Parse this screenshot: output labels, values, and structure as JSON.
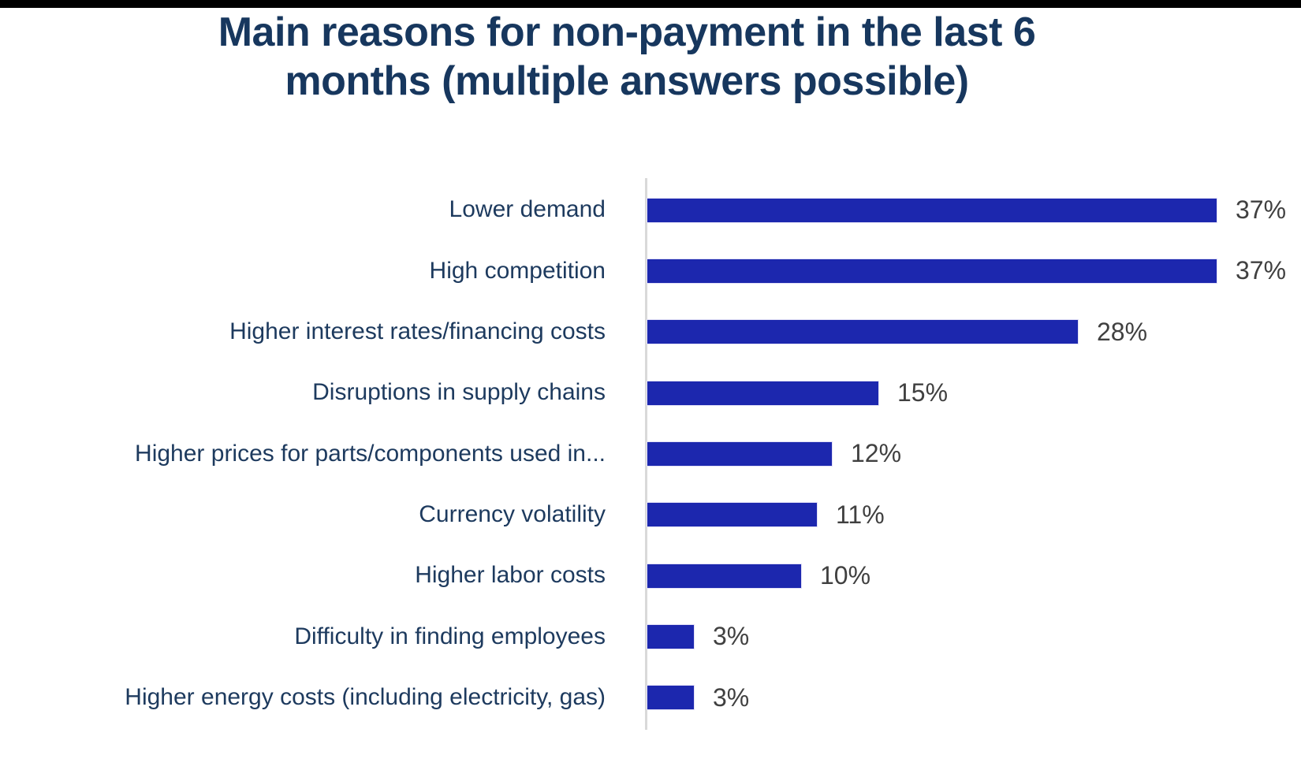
{
  "colors": {
    "top_bar": "#000000",
    "title": "#17375e",
    "category_label": "#1d3a5e",
    "value_label": "#404040",
    "bar": "#1c27ae",
    "axis_line": "#d9d9d9",
    "background": "#ffffff"
  },
  "chart_data": {
    "type": "bar",
    "orientation": "horizontal",
    "title": "Main reasons for non-payment in the last 6 months (multiple answers possible)",
    "title_lines": [
      "Main reasons for non-payment in the last 6",
      "months (multiple answers possible)"
    ],
    "categories": [
      "Lower demand",
      "High competition",
      "Higher interest rates/financing costs",
      "Disruptions in supply chains",
      "Higher prices for parts/components used in...",
      "Currency volatility",
      "Higher labor costs",
      "Difficulty in finding employees",
      "Higher energy costs (including electricity, gas)"
    ],
    "values": [
      37,
      37,
      28,
      15,
      12,
      11,
      10,
      3,
      3
    ],
    "value_labels": [
      "37%",
      "37%",
      "28%",
      "15%",
      "12%",
      "11%",
      "10%",
      "3%",
      "3%"
    ],
    "unit": "%",
    "xlim": [
      0,
      40
    ],
    "xlabel": "",
    "ylabel": "",
    "grid": false,
    "legend": false,
    "value_label_position": "end-of-bar"
  }
}
